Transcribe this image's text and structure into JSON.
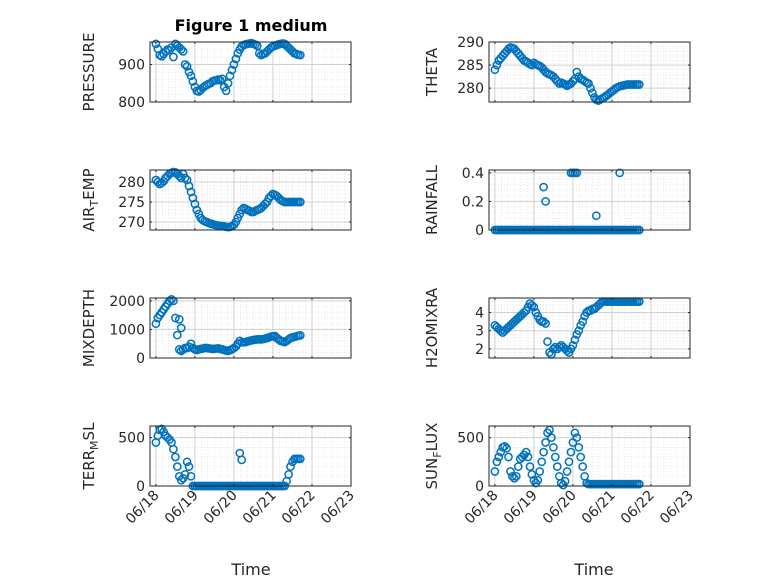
{
  "title": "Figure 1 medium",
  "xlabel": "Time",
  "x_ticks": [
    "06/18",
    "06/19",
    "06/20",
    "06/21",
    "06/22",
    "06/23"
  ],
  "colors": {
    "marker": "#0072BD",
    "grid": "#dfdfdf",
    "axis": "#262626"
  },
  "chart_data": [
    {
      "type": "scatter",
      "ylabel": "PRESSURE",
      "ylim": [
        800,
        960
      ],
      "yticks": [
        800,
        900
      ],
      "x": [
        0.0,
        0.05,
        0.1,
        0.15,
        0.2,
        0.25,
        0.3,
        0.35,
        0.4,
        0.45,
        0.5,
        0.55,
        0.6,
        0.65,
        0.7,
        0.75,
        0.8,
        0.85,
        0.9,
        0.95,
        1.0,
        1.05,
        1.1,
        1.15,
        1.2,
        1.25,
        1.3,
        1.35,
        1.4,
        1.45,
        1.5,
        1.55,
        1.6,
        1.65,
        1.7,
        1.75,
        1.8,
        1.85,
        1.9,
        1.95,
        2.0,
        2.05,
        2.1,
        2.15,
        2.2,
        2.25,
        2.3,
        2.35,
        2.4,
        2.45,
        2.5,
        2.55,
        2.6,
        2.65,
        2.7,
        2.75,
        2.8,
        2.85,
        2.9,
        2.95,
        3.0,
        3.05,
        3.1,
        3.15,
        3.2,
        3.25,
        3.3,
        3.35,
        3.4,
        3.45,
        3.5,
        3.55,
        3.6,
        3.65,
        3.7
      ],
      "y": [
        955,
        942,
        925,
        922,
        928,
        935,
        940,
        938,
        945,
        920,
        955,
        950,
        945,
        940,
        935,
        900,
        895,
        880,
        870,
        855,
        840,
        830,
        828,
        832,
        838,
        842,
        845,
        848,
        850,
        855,
        857,
        858,
        860,
        858,
        862,
        840,
        830,
        850,
        870,
        885,
        900,
        915,
        930,
        940,
        948,
        952,
        954,
        955,
        956,
        957,
        955,
        953,
        950,
        930,
        925,
        928,
        930,
        935,
        940,
        945,
        948,
        950,
        952,
        954,
        955,
        956,
        955,
        950,
        945,
        940,
        935,
        930,
        928,
        926,
        925
      ]
    },
    {
      "type": "scatter",
      "ylabel": "THETA",
      "ylim": [
        277,
        290
      ],
      "yticks": [
        280,
        285,
        290
      ],
      "x": [
        0.0,
        0.05,
        0.1,
        0.15,
        0.2,
        0.25,
        0.3,
        0.35,
        0.4,
        0.45,
        0.5,
        0.55,
        0.6,
        0.65,
        0.7,
        0.75,
        0.8,
        0.85,
        0.9,
        0.95,
        1.0,
        1.05,
        1.1,
        1.15,
        1.2,
        1.25,
        1.3,
        1.35,
        1.4,
        1.45,
        1.5,
        1.55,
        1.6,
        1.65,
        1.7,
        1.75,
        1.8,
        1.85,
        1.9,
        1.95,
        2.0,
        2.05,
        2.1,
        2.15,
        2.2,
        2.25,
        2.3,
        2.35,
        2.4,
        2.45,
        2.5,
        2.55,
        2.6,
        2.65,
        2.7,
        2.75,
        2.8,
        2.85,
        2.9,
        2.95,
        3.0,
        3.05,
        3.1,
        3.15,
        3.2,
        3.25,
        3.3,
        3.35,
        3.4,
        3.45,
        3.5,
        3.55,
        3.6,
        3.65,
        3.7
      ],
      "y": [
        284,
        285,
        286,
        286.5,
        287,
        287.5,
        288,
        288.5,
        288.8,
        288.7,
        288.5,
        288,
        287.5,
        287,
        286.5,
        286,
        285.8,
        285.5,
        285.2,
        285,
        285.5,
        285.2,
        285,
        284.8,
        284.5,
        284,
        283.5,
        283.2,
        283,
        282.8,
        282.5,
        282,
        281.5,
        281,
        281.2,
        281,
        280.8,
        280.5,
        280.8,
        281,
        281.5,
        282,
        283.5,
        282.5,
        282,
        281.8,
        281.5,
        281.2,
        281,
        280,
        279,
        278,
        277.5,
        277.3,
        277.5,
        277.8,
        278,
        278.3,
        278.6,
        279,
        279.3,
        279.6,
        280,
        280.2,
        280.4,
        280.5,
        280.6,
        280.7,
        280.8,
        280.8,
        280.8,
        280.8,
        280.8,
        280.8,
        280.8
      ]
    },
    {
      "type": "scatter",
      "ylabel": "AIR_TEMP",
      "ylim": [
        268,
        283
      ],
      "yticks": [
        270,
        275,
        280
      ],
      "x": [
        0.0,
        0.05,
        0.1,
        0.15,
        0.2,
        0.25,
        0.3,
        0.35,
        0.4,
        0.45,
        0.5,
        0.55,
        0.6,
        0.65,
        0.7,
        0.75,
        0.8,
        0.85,
        0.9,
        0.95,
        1.0,
        1.05,
        1.1,
        1.15,
        1.2,
        1.25,
        1.3,
        1.35,
        1.4,
        1.45,
        1.5,
        1.55,
        1.6,
        1.65,
        1.7,
        1.75,
        1.8,
        1.85,
        1.9,
        1.95,
        2.0,
        2.05,
        2.1,
        2.15,
        2.2,
        2.25,
        2.3,
        2.35,
        2.4,
        2.45,
        2.5,
        2.55,
        2.6,
        2.65,
        2.7,
        2.75,
        2.8,
        2.85,
        2.9,
        2.95,
        3.0,
        3.05,
        3.1,
        3.15,
        3.2,
        3.25,
        3.3,
        3.35,
        3.4,
        3.45,
        3.5,
        3.55,
        3.6,
        3.65,
        3.7
      ],
      "y": [
        280.5,
        280,
        279.5,
        279.8,
        280.2,
        281,
        281.5,
        282,
        282.3,
        282.5,
        282.4,
        282,
        281.5,
        281,
        282,
        281,
        280.5,
        279,
        277.5,
        276,
        274.5,
        273,
        272,
        271,
        270.5,
        270.2,
        270,
        269.8,
        269.6,
        269.5,
        269.3,
        269.2,
        269.1,
        269,
        269,
        268.9,
        268.8,
        268.7,
        268.8,
        269,
        269.3,
        270,
        271,
        272,
        273,
        273.5,
        273.3,
        273,
        272.8,
        272.5,
        272.5,
        272.8,
        273,
        273.2,
        273.5,
        274,
        274.5,
        275,
        276,
        276.5,
        277,
        276.8,
        276.5,
        276,
        275.5,
        275.2,
        275,
        275,
        275,
        275,
        275,
        275,
        275,
        275,
        275
      ]
    },
    {
      "type": "scatter",
      "ylabel": "RAINFALL",
      "ylim": [
        0,
        0.42
      ],
      "yticks": [
        0,
        0.2,
        0.4
      ],
      "ytick_labels": [
        "0",
        "0.2",
        "0.4"
      ],
      "x": [
        0.0,
        0.05,
        0.1,
        0.15,
        0.2,
        0.25,
        0.3,
        0.35,
        0.4,
        0.45,
        0.5,
        0.55,
        0.6,
        0.65,
        0.7,
        0.75,
        0.8,
        0.85,
        0.9,
        0.95,
        1.0,
        1.05,
        1.1,
        1.15,
        1.2,
        1.25,
        1.3,
        1.35,
        1.4,
        1.45,
        1.5,
        1.55,
        1.6,
        1.65,
        1.7,
        1.75,
        1.8,
        1.85,
        1.9,
        1.95,
        2.0,
        2.05,
        2.1,
        2.15,
        2.2,
        2.25,
        2.3,
        2.35,
        2.4,
        2.45,
        2.5,
        2.55,
        2.6,
        2.65,
        2.7,
        2.75,
        2.8,
        2.85,
        2.9,
        2.95,
        3.0,
        3.05,
        3.1,
        3.15,
        3.2,
        3.25,
        3.3,
        3.35,
        3.4,
        3.45,
        3.5,
        3.55,
        3.6,
        3.65,
        3.7,
        1.25,
        1.3,
        1.95,
        2.0,
        2.05,
        2.1,
        2.6,
        3.2
      ],
      "y": [
        0,
        0,
        0,
        0,
        0,
        0,
        0,
        0,
        0,
        0,
        0,
        0,
        0,
        0,
        0,
        0,
        0,
        0,
        0,
        0,
        0,
        0,
        0,
        0,
        0,
        0,
        0,
        0,
        0,
        0,
        0,
        0,
        0,
        0,
        0,
        0,
        0,
        0,
        0,
        0,
        0,
        0,
        0,
        0,
        0,
        0,
        0,
        0,
        0,
        0,
        0,
        0,
        0,
        0,
        0,
        0,
        0,
        0,
        0,
        0,
        0,
        0,
        0,
        0,
        0,
        0,
        0,
        0,
        0,
        0,
        0,
        0,
        0,
        0,
        0,
        0.3,
        0.2,
        0.4,
        0.4,
        0.4,
        0.4,
        0.1,
        0.4
      ]
    },
    {
      "type": "scatter",
      "ylabel": "MIXDEPTH",
      "ylim": [
        0,
        2100
      ],
      "yticks": [
        0,
        1000,
        2000
      ],
      "x": [
        0.0,
        0.05,
        0.1,
        0.15,
        0.2,
        0.25,
        0.3,
        0.35,
        0.4,
        0.45,
        0.5,
        0.55,
        0.6,
        0.65,
        0.7,
        0.75,
        0.8,
        0.85,
        0.9,
        0.95,
        1.0,
        1.05,
        1.1,
        1.15,
        1.2,
        1.25,
        1.3,
        1.35,
        1.4,
        1.45,
        1.5,
        1.55,
        1.6,
        1.65,
        1.7,
        1.75,
        1.8,
        1.85,
        1.9,
        1.95,
        2.0,
        2.05,
        2.1,
        2.15,
        2.2,
        2.25,
        2.3,
        2.35,
        2.4,
        2.45,
        2.5,
        2.55,
        2.6,
        2.65,
        2.7,
        2.75,
        2.8,
        2.85,
        2.9,
        2.95,
        3.0,
        3.05,
        3.1,
        3.15,
        3.2,
        3.25,
        3.3,
        3.35,
        3.4,
        3.45,
        3.5,
        3.55,
        3.6,
        3.65,
        3.7,
        0.6,
        0.65
      ],
      "y": [
        1200,
        1400,
        1500,
        1600,
        1700,
        1800,
        1900,
        2000,
        2050,
        2000,
        1400,
        800,
        300,
        250,
        300,
        350,
        350,
        400,
        500,
        350,
        300,
        280,
        300,
        320,
        330,
        350,
        350,
        340,
        330,
        320,
        320,
        330,
        340,
        320,
        300,
        280,
        260,
        250,
        280,
        300,
        350,
        400,
        500,
        600,
        550,
        550,
        560,
        580,
        600,
        620,
        630,
        640,
        650,
        650,
        650,
        660,
        680,
        700,
        720,
        750,
        760,
        770,
        700,
        650,
        600,
        580,
        560,
        600,
        650,
        700,
        720,
        740,
        760,
        780,
        790,
        1350,
        1050
      ]
    },
    {
      "type": "scatter",
      "ylabel": "H2OMIXRA",
      "ylim": [
        1.5,
        4.8
      ],
      "yticks": [
        2,
        3,
        4
      ],
      "x": [
        0.0,
        0.05,
        0.1,
        0.15,
        0.2,
        0.25,
        0.3,
        0.35,
        0.4,
        0.45,
        0.5,
        0.55,
        0.6,
        0.65,
        0.7,
        0.75,
        0.8,
        0.85,
        0.9,
        0.95,
        1.0,
        1.05,
        1.1,
        1.15,
        1.2,
        1.25,
        1.3,
        1.35,
        1.4,
        1.45,
        1.5,
        1.55,
        1.6,
        1.65,
        1.7,
        1.75,
        1.8,
        1.85,
        1.9,
        1.95,
        2.0,
        2.05,
        2.1,
        2.15,
        2.2,
        2.25,
        2.3,
        2.35,
        2.4,
        2.45,
        2.5,
        2.55,
        2.6,
        2.65,
        2.7,
        2.75,
        2.8,
        2.85,
        2.9,
        2.95,
        3.0,
        3.05,
        3.1,
        3.15,
        3.2,
        3.25,
        3.3,
        3.35,
        3.4,
        3.45,
        3.5,
        3.55,
        3.6,
        3.65,
        3.7
      ],
      "y": [
        3.3,
        3.2,
        3.1,
        3.0,
        2.9,
        3.0,
        3.1,
        3.2,
        3.3,
        3.4,
        3.5,
        3.6,
        3.7,
        3.8,
        3.9,
        4.0,
        4.1,
        4.3,
        4.5,
        4.4,
        4.3,
        4.0,
        3.8,
        3.6,
        3.5,
        3.5,
        3.4,
        2.4,
        1.8,
        1.7,
        2.0,
        2.1,
        2.0,
        2.1,
        2.2,
        2.1,
        2.0,
        1.9,
        1.8,
        2.0,
        2.2,
        2.5,
        2.8,
        3.0,
        3.3,
        3.5,
        3.8,
        4.0,
        4.1,
        4.1,
        4.2,
        4.2,
        4.3,
        4.4,
        4.5,
        4.6,
        4.6,
        4.6,
        4.6,
        4.6,
        4.6,
        4.6,
        4.6,
        4.6,
        4.6,
        4.6,
        4.6,
        4.6,
        4.6,
        4.6,
        4.6,
        4.6,
        4.6,
        4.6,
        4.6
      ]
    },
    {
      "type": "scatter",
      "ylabel": "TERR_MSL",
      "ylim": [
        0,
        620
      ],
      "yticks": [
        0,
        500
      ],
      "x": [
        0.0,
        0.05,
        0.1,
        0.15,
        0.2,
        0.25,
        0.3,
        0.35,
        0.4,
        0.45,
        0.5,
        0.55,
        0.6,
        0.65,
        0.7,
        0.75,
        0.8,
        0.85,
        0.9,
        0.95,
        1.0,
        1.05,
        1.1,
        1.15,
        1.2,
        1.25,
        1.3,
        1.35,
        1.4,
        1.45,
        1.5,
        1.55,
        1.6,
        1.65,
        1.7,
        1.75,
        1.8,
        1.85,
        1.9,
        1.95,
        2.0,
        2.05,
        2.1,
        2.15,
        2.2,
        2.25,
        2.3,
        2.35,
        2.4,
        2.45,
        2.5,
        2.55,
        2.6,
        2.65,
        2.7,
        2.75,
        2.8,
        2.85,
        2.9,
        2.95,
        3.0,
        3.05,
        3.1,
        3.15,
        3.2,
        3.25,
        3.3,
        3.35,
        3.4,
        3.45,
        3.5,
        3.55,
        3.6,
        3.65,
        3.7,
        2.15,
        2.2
      ],
      "y": [
        450,
        520,
        580,
        590,
        560,
        520,
        500,
        480,
        450,
        380,
        300,
        200,
        100,
        60,
        80,
        120,
        250,
        200,
        100,
        0,
        0,
        0,
        0,
        0,
        0,
        0,
        0,
        0,
        0,
        0,
        0,
        0,
        0,
        0,
        0,
        0,
        0,
        0,
        0,
        0,
        0,
        0,
        0,
        0,
        0,
        0,
        0,
        0,
        0,
        0,
        0,
        0,
        0,
        0,
        0,
        0,
        0,
        0,
        0,
        0,
        0,
        0,
        0,
        0,
        0,
        0,
        0,
        50,
        120,
        200,
        250,
        280,
        280,
        280,
        280,
        340,
        270
      ]
    },
    {
      "type": "scatter",
      "ylabel": "SUN_FLUX",
      "ylim": [
        0,
        620
      ],
      "yticks": [
        0,
        500
      ],
      "x": [
        0.0,
        0.05,
        0.1,
        0.15,
        0.2,
        0.25,
        0.3,
        0.35,
        0.4,
        0.45,
        0.5,
        0.55,
        0.6,
        0.65,
        0.7,
        0.75,
        0.8,
        0.85,
        0.9,
        0.95,
        1.0,
        1.05,
        1.1,
        1.15,
        1.2,
        1.25,
        1.3,
        1.35,
        1.4,
        1.45,
        1.5,
        1.55,
        1.6,
        1.65,
        1.7,
        1.75,
        1.8,
        1.85,
        1.9,
        1.95,
        2.0,
        2.05,
        2.1,
        2.15,
        2.2,
        2.25,
        2.3,
        2.35,
        2.4,
        2.45,
        2.5,
        2.55,
        2.6,
        2.65,
        2.7,
        2.75,
        2.8,
        2.85,
        2.9,
        2.95,
        3.0,
        3.05,
        3.1,
        3.15,
        3.2,
        3.25,
        3.3,
        3.35,
        3.4,
        3.45,
        3.5,
        3.55,
        3.6,
        3.65,
        3.7
      ],
      "y": [
        150,
        250,
        300,
        350,
        400,
        410,
        390,
        300,
        150,
        100,
        80,
        100,
        200,
        280,
        300,
        320,
        350,
        300,
        200,
        120,
        60,
        30,
        60,
        150,
        250,
        350,
        450,
        550,
        580,
        500,
        400,
        300,
        200,
        100,
        30,
        10,
        50,
        150,
        250,
        350,
        450,
        550,
        500,
        400,
        300,
        200,
        100,
        30,
        20,
        20,
        20,
        20,
        20,
        20,
        20,
        20,
        20,
        20,
        20,
        20,
        20,
        20,
        20,
        20,
        20,
        20,
        20,
        20,
        20,
        20,
        20,
        20,
        20,
        20,
        20
      ]
    }
  ]
}
